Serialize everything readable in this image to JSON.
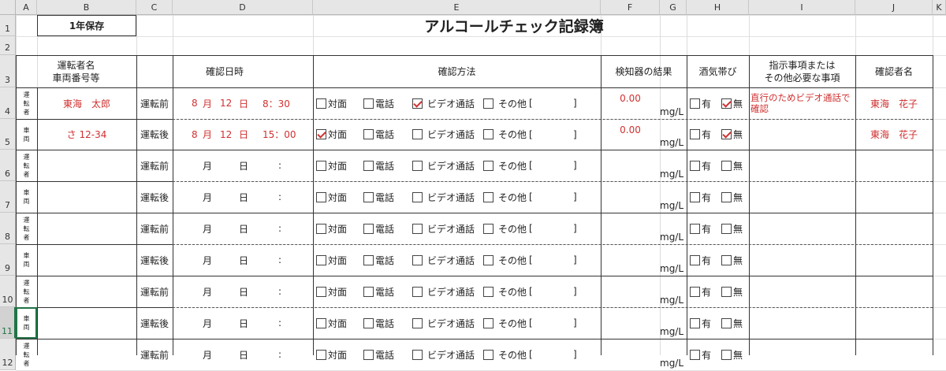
{
  "columns": [
    "A",
    "B",
    "C",
    "D",
    "E",
    "F",
    "G",
    "H",
    "I",
    "J",
    "K"
  ],
  "row_numbers": [
    "1",
    "2",
    "3",
    "4",
    "5",
    "6",
    "7",
    "8",
    "9",
    "10",
    "11",
    "12"
  ],
  "selected_row": "11",
  "retention_label": "1年保存",
  "title": "アルコールチェック記録簿",
  "headers": {
    "driver": "運転者名\n車両番号等",
    "datetime": "確認日時",
    "method": "確認方法",
    "detector": "検知器の結果",
    "alcohol": "酒気帯び",
    "instructions": "指示事項または\nその他必要な事項",
    "confirmer": "確認者名"
  },
  "labels": {
    "driver_side": "運\n転\n者",
    "vehicle_side": "車\n両",
    "before": "運転前",
    "after": "運転後",
    "month": "月",
    "day": "日",
    "colon": ":",
    "unit": "mg/L",
    "m_face": "対面",
    "m_phone": "電話",
    "m_video": "ビデオ通話",
    "m_other": "その他",
    "bracket_open": "[",
    "bracket_close": "]",
    "yes": "有",
    "no": "無"
  },
  "accent_color": "#d03030",
  "rows": [
    {
      "row": "4",
      "side": "driver",
      "name": "東海　太郎",
      "timing": "before",
      "month": "8",
      "day": "12",
      "time": "8：30",
      "method": {
        "face": false,
        "phone": false,
        "video": true,
        "other": false
      },
      "result": "0.00",
      "yes": false,
      "no": true,
      "note": "直行のためビデオ通話で確認",
      "confirmer": "東海　花子"
    },
    {
      "row": "5",
      "side": "vehicle",
      "name": "さ 12-34",
      "timing": "after",
      "month": "8",
      "day": "12",
      "time": "15：00",
      "method": {
        "face": true,
        "phone": false,
        "video": false,
        "other": false
      },
      "result": "0.00",
      "yes": false,
      "no": true,
      "note": "",
      "confirmer": "東海　花子"
    },
    {
      "row": "6",
      "side": "driver",
      "name": "",
      "timing": "before",
      "month": "",
      "day": "",
      "time": "",
      "method": {},
      "result": "",
      "yes": false,
      "no": false,
      "note": "",
      "confirmer": ""
    },
    {
      "row": "7",
      "side": "vehicle",
      "name": "",
      "timing": "after",
      "month": "",
      "day": "",
      "time": "",
      "method": {},
      "result": "",
      "yes": false,
      "no": false,
      "note": "",
      "confirmer": ""
    },
    {
      "row": "8",
      "side": "driver",
      "name": "",
      "timing": "before",
      "month": "",
      "day": "",
      "time": "",
      "method": {},
      "result": "",
      "yes": false,
      "no": false,
      "note": "",
      "confirmer": ""
    },
    {
      "row": "9",
      "side": "vehicle",
      "name": "",
      "timing": "after",
      "month": "",
      "day": "",
      "time": "",
      "method": {},
      "result": "",
      "yes": false,
      "no": false,
      "note": "",
      "confirmer": ""
    },
    {
      "row": "10",
      "side": "driver",
      "name": "",
      "timing": "before",
      "month": "",
      "day": "",
      "time": "",
      "method": {},
      "result": "",
      "yes": false,
      "no": false,
      "note": "",
      "confirmer": ""
    },
    {
      "row": "11",
      "side": "vehicle",
      "name": "",
      "timing": "after",
      "month": "",
      "day": "",
      "time": "",
      "method": {},
      "result": "",
      "yes": false,
      "no": false,
      "note": "",
      "confirmer": ""
    },
    {
      "row": "12",
      "side": "driver",
      "name": "",
      "timing": "before",
      "month": "",
      "day": "",
      "time": "",
      "method": {},
      "result": "",
      "yes": false,
      "no": false,
      "note": "",
      "confirmer": ""
    }
  ]
}
